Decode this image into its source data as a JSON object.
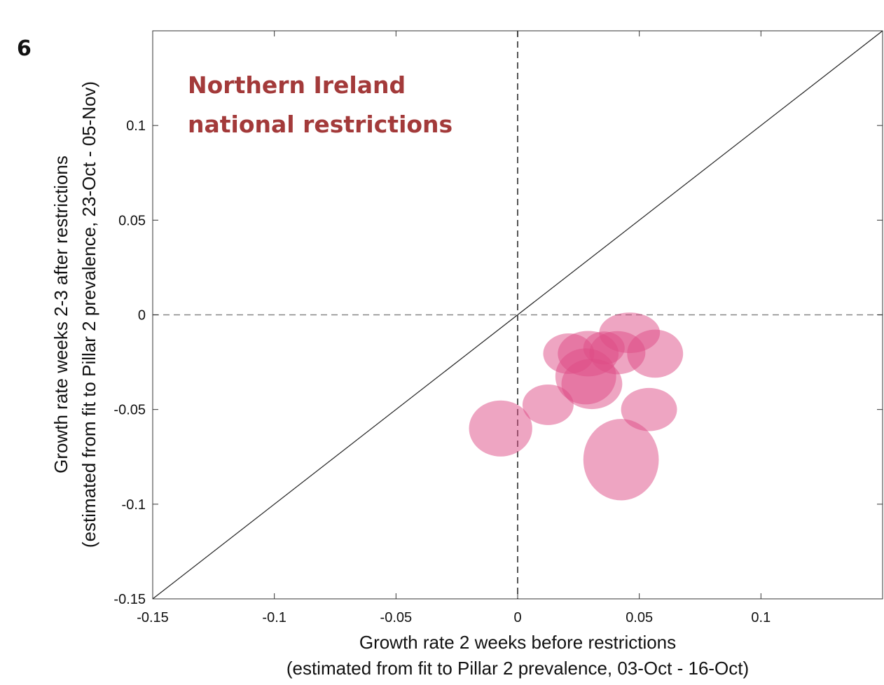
{
  "panel_label": "6",
  "chart_data": {
    "type": "scatter",
    "title": "",
    "annotation": [
      "Northern Ireland",
      "national restrictions"
    ],
    "xlabel": "Growth rate 2 weeks before restrictions",
    "xlabel_sub": "(estimated from fit to Pillar 2 prevalence, 03-Oct - 16-Oct)",
    "ylabel": "Growth rate weeks 2-3 after restrictions",
    "ylabel_sub": "(estimated from fit to Pillar 2 prevalence, 23-Oct - 05-Nov)",
    "xlim": [
      -0.15,
      0.15
    ],
    "ylim": [
      -0.15,
      0.15
    ],
    "x_ticks": [
      {
        "value": -0.15,
        "label": "-0.15"
      },
      {
        "value": -0.1,
        "label": "-0.1"
      },
      {
        "value": -0.05,
        "label": "-0.05"
      },
      {
        "value": 0,
        "label": "0"
      },
      {
        "value": 0.05,
        "label": "0.05"
      },
      {
        "value": 0.1,
        "label": "0.1"
      }
    ],
    "y_ticks": [
      {
        "value": -0.15,
        "label": "-0.15"
      },
      {
        "value": -0.1,
        "label": "-0.1"
      },
      {
        "value": -0.05,
        "label": "-0.05"
      },
      {
        "value": 0,
        "label": "0"
      },
      {
        "value": 0.05,
        "label": "0.05"
      },
      {
        "value": 0.1,
        "label": "0.1"
      }
    ],
    "reference_lines": [
      "diagonal y = x",
      "dashed x = 0",
      "dashed y = 0"
    ],
    "points": [
      {
        "x": -0.007,
        "y": -0.06,
        "rx": 0.013,
        "ry": 0.0148
      },
      {
        "x": 0.0125,
        "y": -0.0475,
        "rx": 0.0105,
        "ry": 0.0107
      },
      {
        "x": 0.021,
        "y": -0.0205,
        "rx": 0.0105,
        "ry": 0.0107
      },
      {
        "x": 0.028,
        "y": -0.0325,
        "rx": 0.0125,
        "ry": 0.0148
      },
      {
        "x": 0.029,
        "y": -0.0205,
        "rx": 0.0125,
        "ry": 0.012
      },
      {
        "x": 0.0305,
        "y": -0.0365,
        "rx": 0.0125,
        "ry": 0.0133
      },
      {
        "x": 0.0355,
        "y": -0.0175,
        "rx": 0.0085,
        "ry": 0.0087
      },
      {
        "x": 0.041,
        "y": -0.02,
        "rx": 0.0115,
        "ry": 0.0114
      },
      {
        "x": 0.046,
        "y": -0.0095,
        "rx": 0.0125,
        "ry": 0.0107
      },
      {
        "x": 0.0565,
        "y": -0.0205,
        "rx": 0.0115,
        "ry": 0.0127
      },
      {
        "x": 0.054,
        "y": -0.05,
        "rx": 0.0115,
        "ry": 0.0114
      },
      {
        "x": 0.0425,
        "y": -0.0765,
        "rx": 0.0155,
        "ry": 0.0215
      }
    ],
    "grid": false,
    "colors": {
      "bubble": "#de4b86",
      "annotation": "#a33a3a",
      "axes": "#333333",
      "reference": "#555555"
    }
  }
}
